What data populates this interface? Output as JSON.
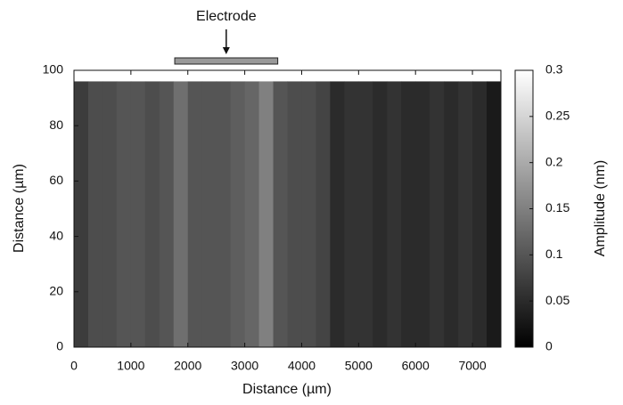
{
  "chart_data": {
    "type": "heatmap",
    "x_edges": [
      0,
      250,
      500,
      750,
      1000,
      1250,
      1500,
      1750,
      2000,
      2250,
      2500,
      2750,
      3000,
      3250,
      3500,
      3750,
      4000,
      4250,
      4500,
      4750,
      5000,
      5250,
      5500,
      5750,
      6000,
      6250,
      6500,
      6750,
      7000,
      7250,
      7500
    ],
    "y_edges": [
      0,
      96
    ],
    "values": [
      0.07,
      0.09,
      0.09,
      0.1,
      0.1,
      0.09,
      0.1,
      0.13,
      0.1,
      0.1,
      0.1,
      0.11,
      0.12,
      0.15,
      0.1,
      0.09,
      0.09,
      0.08,
      0.05,
      0.06,
      0.06,
      0.05,
      0.06,
      0.05,
      0.05,
      0.06,
      0.05,
      0.06,
      0.05,
      0.03
    ],
    "xlim": [
      0,
      7500
    ],
    "ylim": [
      0,
      100
    ],
    "xticks": [
      0,
      1000,
      2000,
      3000,
      4000,
      5000,
      6000,
      7000
    ],
    "yticks": [
      0,
      20,
      40,
      60,
      80,
      100
    ],
    "xlabel": "Distance (µm)",
    "ylabel": "Distance (µm)",
    "colorbar": {
      "label": "Amplitude (nm)",
      "lim": [
        0,
        0.3
      ],
      "ticks": [
        0,
        0.05,
        0.1,
        0.15,
        0.2,
        0.25,
        0.3
      ]
    },
    "annotation": {
      "text": "Electrode",
      "x": [
        1770,
        3580
      ]
    }
  }
}
